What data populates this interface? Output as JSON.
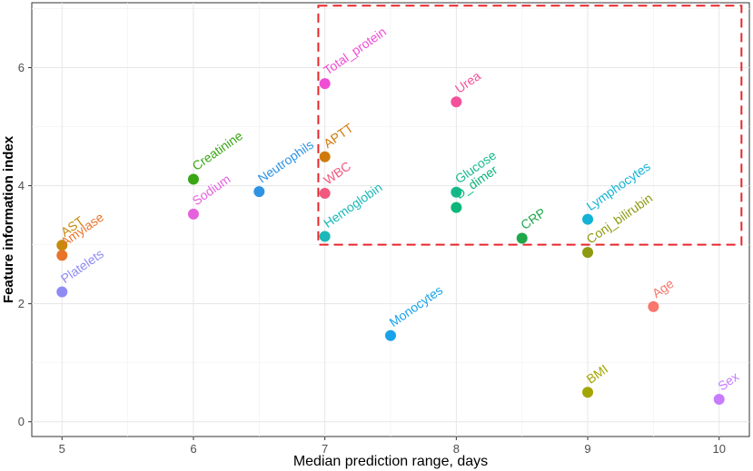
{
  "chart_data": {
    "type": "scatter",
    "title": "",
    "xlabel": "Median prediction range, days",
    "ylabel": "Feature information index",
    "xlim": [
      4.77,
      10.23
    ],
    "ylim": [
      -0.25,
      7.1
    ],
    "xticks": [
      5,
      6,
      7,
      8,
      9,
      10
    ],
    "yticks": [
      0,
      2,
      4,
      6
    ],
    "xtick_labels": [
      "5",
      "6",
      "7",
      "8",
      "9",
      "10"
    ],
    "ytick_labels": [
      "0",
      "2",
      "4",
      "6"
    ],
    "grid": true,
    "highlight_box": {
      "x": [
        6.95,
        10.17
      ],
      "y": [
        3.0,
        7.05
      ],
      "color": "#e8262b",
      "style": "dashed"
    },
    "points": [
      {
        "name": "AST",
        "x": 5.0,
        "y": 2.99,
        "color": "#c78a0b"
      },
      {
        "name": "Amylase",
        "x": 5.0,
        "y": 2.82,
        "color": "#e8742a"
      },
      {
        "name": "Platelets",
        "x": 5.0,
        "y": 2.2,
        "color": "#8e8cf2"
      },
      {
        "name": "Creatinine",
        "x": 6.0,
        "y": 4.11,
        "color": "#3aa615"
      },
      {
        "name": "Sodium",
        "x": 6.0,
        "y": 3.52,
        "color": "#e561dc"
      },
      {
        "name": "Neutrophils",
        "x": 6.5,
        "y": 3.9,
        "color": "#2f93e4"
      },
      {
        "name": "Total_protein",
        "x": 7.0,
        "y": 5.73,
        "color": "#f04dd4"
      },
      {
        "name": "APTT",
        "x": 7.0,
        "y": 4.49,
        "color": "#d07a0b"
      },
      {
        "name": "WBC",
        "x": 7.0,
        "y": 3.87,
        "color": "#f1587e"
      },
      {
        "name": "Hemoglobin",
        "x": 7.0,
        "y": 3.14,
        "color": "#1cb8b8"
      },
      {
        "name": "Urea",
        "x": 8.0,
        "y": 5.42,
        "color": "#f4519c"
      },
      {
        "name": "Glucose",
        "x": 8.0,
        "y": 3.89,
        "color": "#16b88c"
      },
      {
        "name": "D_dimer",
        "x": 8.0,
        "y": 3.63,
        "color": "#0cb67a"
      },
      {
        "name": "CRP",
        "x": 8.5,
        "y": 3.11,
        "color": "#1ea84a"
      },
      {
        "name": "Lymphocytes",
        "x": 9.0,
        "y": 3.43,
        "color": "#13b3d6"
      },
      {
        "name": "Conj_bilirubin",
        "x": 9.0,
        "y": 2.87,
        "color": "#8e9a10"
      },
      {
        "name": "Monocytes",
        "x": 7.5,
        "y": 1.46,
        "color": "#16a3ea"
      },
      {
        "name": "Age",
        "x": 9.5,
        "y": 1.95,
        "color": "#f8766d"
      },
      {
        "name": "BMI",
        "x": 9.0,
        "y": 0.5,
        "color": "#a3a500"
      },
      {
        "name": "Sex",
        "x": 10.0,
        "y": 0.38,
        "color": "#c77cff"
      }
    ]
  }
}
